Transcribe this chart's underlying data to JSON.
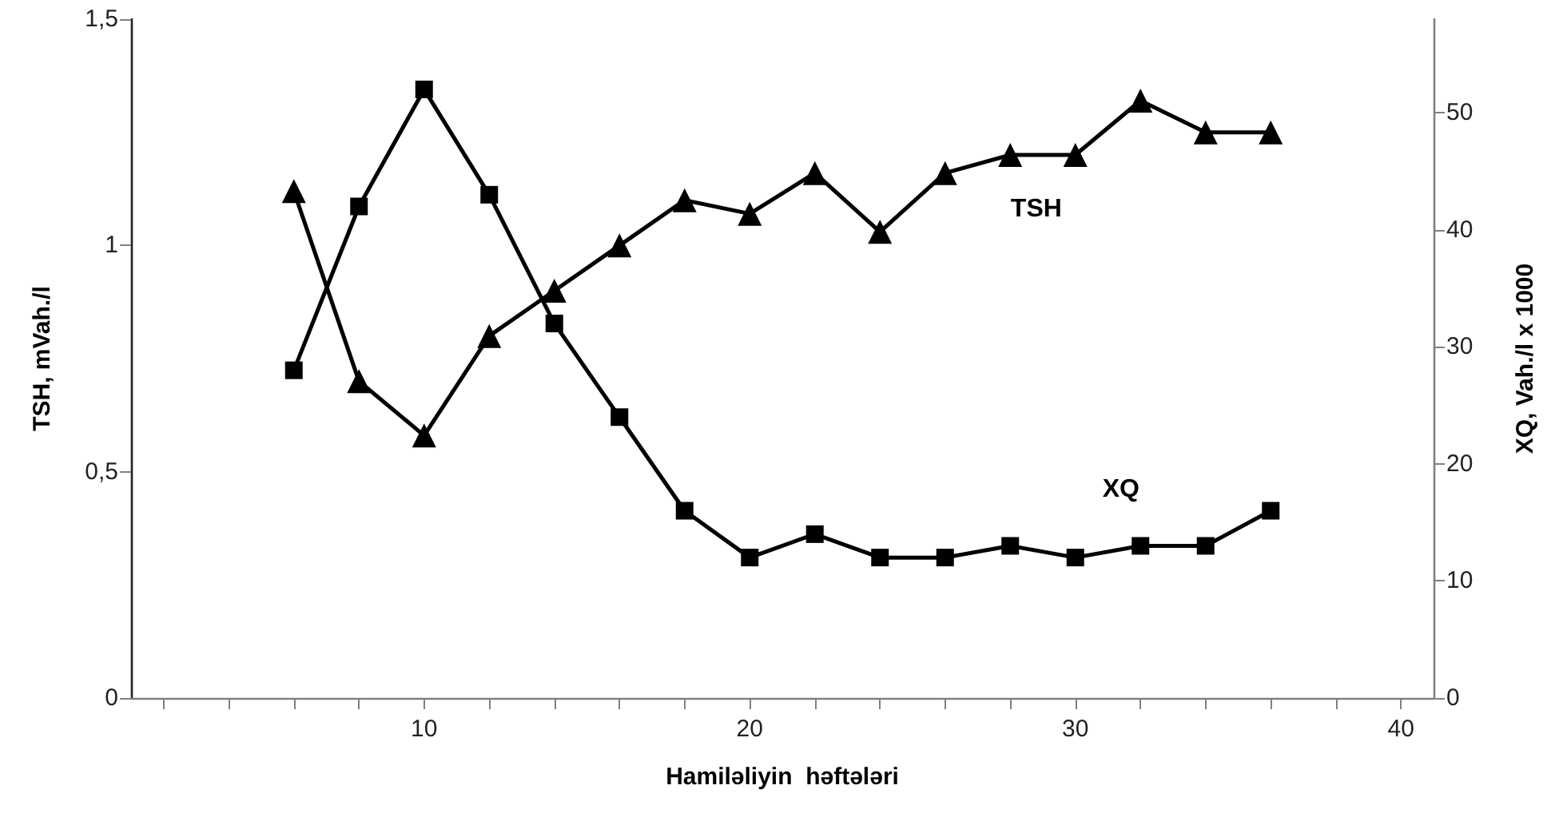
{
  "chart_data": {
    "type": "line",
    "xlabel": "Hamiləliyin  həftələri",
    "ylabel": "TSH, mVah./l",
    "y2label": "XQ, Vah./l x 1000",
    "x": [
      6,
      8,
      10,
      12,
      14,
      16,
      18,
      20,
      22,
      24,
      26,
      28,
      30,
      32,
      34,
      36
    ],
    "series": [
      {
        "name": "TSH",
        "color": "#000000",
        "marker": "triangle",
        "values": [
          1.12,
          0.7,
          0.58,
          0.8,
          0.9,
          1.0,
          1.1,
          1.07,
          1.16,
          1.03,
          1.16,
          1.2,
          1.2,
          1.32,
          1.25,
          1.25
        ]
      },
      {
        "name": "XQ",
        "color": "#000000",
        "marker": "square",
        "axis": "y2",
        "values": [
          28,
          42,
          52,
          43,
          32,
          24,
          16,
          12,
          14,
          12,
          12,
          13,
          12,
          13,
          13,
          16
        ]
      }
    ],
    "xlim": [
      1,
      41
    ],
    "xticks": [
      {
        "value": 2,
        "label": null
      },
      {
        "value": 4,
        "label": null
      },
      {
        "value": 6,
        "label": null
      },
      {
        "value": 8,
        "label": null
      },
      10,
      {
        "value": 12,
        "label": null
      },
      {
        "value": 14,
        "label": null
      },
      {
        "value": 16,
        "label": null
      },
      {
        "value": 18,
        "label": null
      },
      20,
      {
        "value": 22,
        "label": null
      },
      {
        "value": 24,
        "label": null
      },
      {
        "value": 26,
        "label": null
      },
      {
        "value": 28,
        "label": null
      },
      30,
      {
        "value": 32,
        "label": null
      },
      {
        "value": 34,
        "label": null
      },
      {
        "value": 36,
        "label": null
      },
      {
        "value": 38,
        "label": null
      },
      40
    ],
    "ylim": [
      0,
      1.5
    ],
    "yticks": [
      0,
      {
        "value": 0.5,
        "label": "0,5"
      },
      1,
      {
        "value": 1.5,
        "label": "1,5"
      }
    ],
    "y2lim": [
      0,
      58
    ],
    "y2ticks": [
      0,
      10,
      20,
      30,
      40,
      50
    ],
    "grid": false,
    "legend": false,
    "line_style": "solid"
  }
}
